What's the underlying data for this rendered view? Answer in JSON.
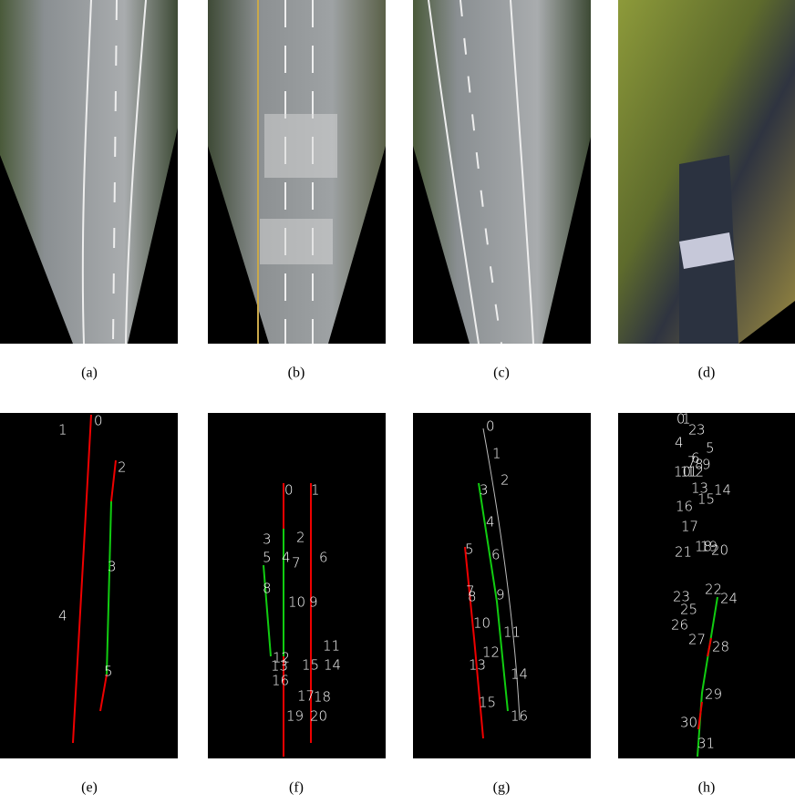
{
  "figure": {
    "panels": [
      {
        "caption": "(a)"
      },
      {
        "caption": "(b)"
      },
      {
        "caption": "(c)"
      },
      {
        "caption": "(d)"
      },
      {
        "caption": "(e)",
        "labels": [
          "0",
          "1",
          "2",
          "3",
          "4",
          "5"
        ]
      },
      {
        "caption": "(f)",
        "labels": [
          "0",
          "1",
          "2",
          "3",
          "5",
          "4",
          "7",
          "6",
          "8",
          "10",
          "9",
          "11",
          "12",
          "13",
          "15",
          "14",
          "16",
          "17",
          "18",
          "19",
          "20"
        ]
      },
      {
        "caption": "(g)",
        "labels": [
          "0",
          "1",
          "2",
          "3",
          "4",
          "5",
          "6",
          "7",
          "8",
          "9",
          "10",
          "11",
          "12",
          "13",
          "14",
          "15",
          "16"
        ]
      },
      {
        "caption": "(h)",
        "labels": [
          "0",
          "1",
          "2",
          "3",
          "4",
          "5",
          "6",
          "7",
          "8",
          "9",
          "10",
          "11",
          "12",
          "13",
          "14",
          "15",
          "16",
          "17",
          "18",
          "19",
          "20",
          "21",
          "22",
          "23",
          "24",
          "25",
          "26",
          "27",
          "28",
          "29",
          "30",
          "31"
        ]
      }
    ]
  }
}
